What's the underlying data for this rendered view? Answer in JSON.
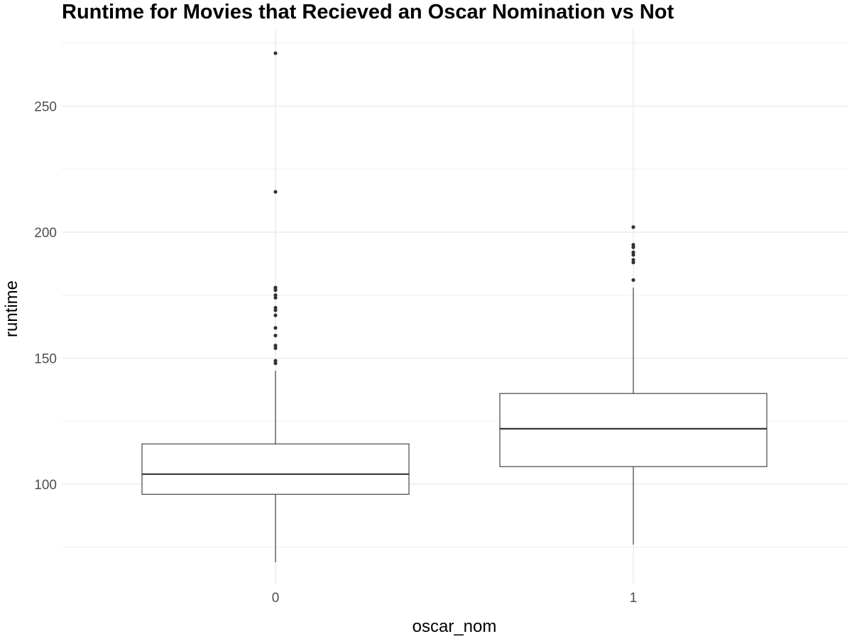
{
  "chart_data": {
    "type": "boxplot",
    "title": "Runtime for Movies that Recieved an Oscar Nomination vs Not",
    "xlabel": "oscar_nom",
    "ylabel": "runtime",
    "categories": [
      "0",
      "1"
    ],
    "y_ticks": [
      100,
      150,
      200,
      250
    ],
    "ylim": [
      63,
      277
    ],
    "grid": true,
    "boxes": [
      {
        "category": "0",
        "whisker_low": 69,
        "q1": 96,
        "median": 104,
        "q3": 116,
        "whisker_high": 145,
        "outliers": [
          148,
          149,
          154,
          155,
          159,
          162,
          167,
          169,
          170,
          174,
          175,
          177,
          178,
          216,
          271
        ]
      },
      {
        "category": "1",
        "whisker_low": 76,
        "q1": 107,
        "median": 122,
        "q3": 136,
        "whisker_high": 178,
        "outliers": [
          181,
          188,
          189,
          191,
          192,
          194,
          195,
          202
        ]
      }
    ],
    "colors": {
      "grid": "#ebebeb",
      "box_line": "#333333",
      "box_fill": "#ffffff",
      "outlier": "#333333"
    }
  }
}
